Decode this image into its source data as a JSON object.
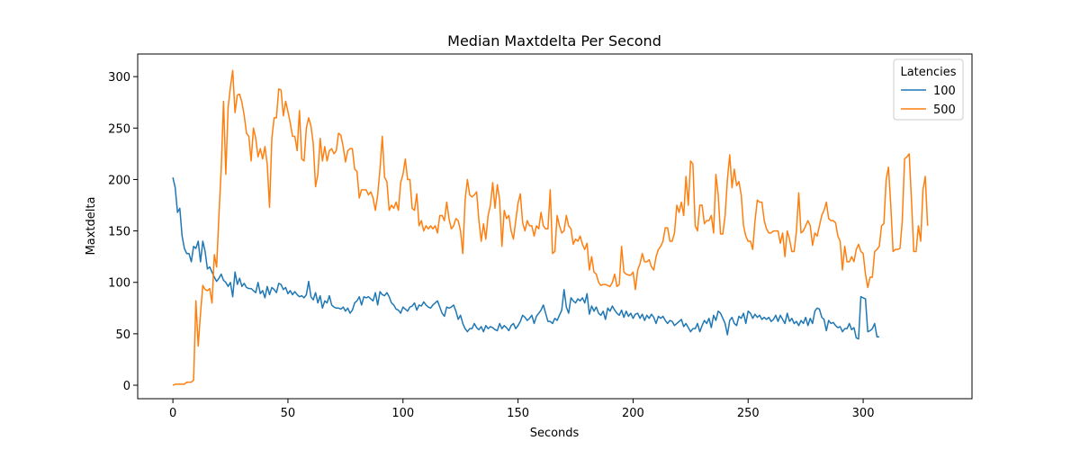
{
  "chart_data": {
    "type": "line",
    "title": "Median Maxtdelta Per Second",
    "x_label": "Seconds",
    "y_label": "Maxtdelta",
    "legend_title": "Latencies",
    "legend_position": "upper right",
    "xlim": [
      -15.3,
      347.3
    ],
    "ylim": [
      -13.1,
      322
    ],
    "xticks": [
      0,
      50,
      100,
      150,
      200,
      250,
      300
    ],
    "yticks": [
      0,
      50,
      100,
      150,
      200,
      250,
      300
    ],
    "x": [
      0,
      1,
      2,
      3,
      4,
      5,
      6,
      7,
      8,
      9,
      10,
      11,
      12,
      13,
      14,
      15,
      16,
      17,
      18,
      19,
      20,
      21,
      22,
      23,
      24,
      25,
      26,
      27,
      28,
      29,
      30,
      31,
      32,
      33,
      34,
      35,
      36,
      37,
      38,
      39,
      40,
      41,
      42,
      43,
      44,
      45,
      46,
      47,
      48,
      49,
      50,
      51,
      52,
      53,
      54,
      55,
      56,
      57,
      58,
      59,
      60,
      61,
      62,
      63,
      64,
      65,
      66,
      67,
      68,
      69,
      70,
      71,
      72,
      73,
      74,
      75,
      76,
      77,
      78,
      79,
      80,
      81,
      82,
      83,
      84,
      85,
      86,
      87,
      88,
      89,
      90,
      91,
      92,
      93,
      94,
      95,
      96,
      97,
      98,
      99,
      100,
      101,
      102,
      103,
      104,
      105,
      106,
      107,
      108,
      109,
      110,
      111,
      112,
      113,
      114,
      115,
      116,
      117,
      118,
      119,
      120,
      121,
      122,
      123,
      124,
      125,
      126,
      127,
      128,
      129,
      130,
      131,
      132,
      133,
      134,
      135,
      136,
      137,
      138,
      139,
      140,
      141,
      142,
      143,
      144,
      145,
      146,
      147,
      148,
      149,
      150,
      151,
      152,
      153,
      154,
      155,
      156,
      157,
      158,
      159,
      160,
      161,
      162,
      163,
      164,
      165,
      166,
      167,
      168,
      169,
      170,
      171,
      172,
      173,
      174,
      175,
      176,
      177,
      178,
      179,
      180,
      181,
      182,
      183,
      184,
      185,
      186,
      187,
      188,
      189,
      190,
      191,
      192,
      193,
      194,
      195,
      196,
      197,
      198,
      199,
      200,
      201,
      202,
      203,
      204,
      205,
      206,
      207,
      208,
      209,
      210,
      211,
      212,
      213,
      214,
      215,
      216,
      217,
      218,
      219,
      220,
      221,
      222,
      223,
      224,
      225,
      226,
      227,
      228,
      229,
      230,
      231,
      232,
      233,
      234,
      235,
      236,
      237,
      238,
      239,
      240,
      241,
      242,
      243,
      244,
      245,
      246,
      247,
      248,
      249,
      250,
      251,
      252,
      253,
      254,
      255,
      256,
      257,
      258,
      259,
      260,
      261,
      262,
      263,
      264,
      265,
      266,
      267,
      268,
      269,
      270,
      271,
      272,
      273,
      274,
      275,
      276,
      277,
      278,
      279,
      280,
      281,
      282,
      283,
      284,
      285,
      286,
      287,
      288,
      289,
      290,
      291,
      292,
      293,
      294,
      295,
      296,
      297,
      298,
      299,
      300,
      301,
      302,
      303,
      304,
      305,
      306,
      307,
      308,
      309,
      310,
      311,
      312,
      313,
      314,
      315,
      316,
      317,
      318,
      319,
      320,
      321,
      322,
      323,
      324,
      325,
      326,
      327,
      328
    ],
    "series": [
      {
        "name": "100",
        "color": "#1f77b4",
        "values": [
          202,
          192,
          168,
          172,
          145,
          133,
          128,
          128,
          120,
          135,
          133,
          140,
          120,
          140,
          130,
          113,
          115,
          110,
          105,
          101,
          104,
          108,
          102,
          100,
          96,
          100,
          86,
          110,
          98,
          104,
          96,
          99,
          95,
          94,
          94,
          92,
          90,
          100,
          89,
          92,
          85,
          96,
          88,
          95,
          93,
          90,
          99,
          98,
          93,
          95,
          89,
          92,
          88,
          91,
          88,
          86,
          87,
          85,
          88,
          101,
          86,
          83,
          90,
          80,
          87,
          75,
          82,
          80,
          87,
          78,
          76,
          75,
          75,
          74,
          76,
          72,
          75,
          70,
          73,
          80,
          82,
          86,
          78,
          86,
          85,
          86,
          84,
          82,
          90,
          78,
          91,
          88,
          87,
          90,
          86,
          80,
          78,
          74,
          73,
          70,
          76,
          74,
          72,
          76,
          77,
          80,
          73,
          78,
          77,
          81,
          78,
          76,
          75,
          78,
          80,
          82,
          76,
          70,
          67,
          76,
          75,
          76,
          78,
          72,
          64,
          68,
          60,
          55,
          52,
          55,
          55,
          60,
          56,
          54,
          57,
          52,
          58,
          55,
          57,
          56,
          54,
          53,
          60,
          55,
          58,
          56,
          53,
          58,
          60,
          55,
          58,
          62,
          68,
          66,
          63,
          65,
          68,
          60,
          67,
          70,
          73,
          78,
          70,
          62,
          62,
          60,
          65,
          63,
          68,
          73,
          93,
          76,
          70,
          85,
          82,
          80,
          84,
          82,
          85,
          80,
          89,
          69,
          77,
          72,
          76,
          70,
          68,
          72,
          64,
          75,
          72,
          77,
          73,
          70,
          68,
          73,
          66,
          72,
          67,
          70,
          65,
          69,
          70,
          65,
          69,
          63,
          68,
          65,
          69,
          66,
          60,
          67,
          65,
          67,
          63,
          60,
          63,
          62,
          58,
          60,
          62,
          64,
          57,
          60,
          56,
          52,
          55,
          55,
          60,
          52,
          58,
          63,
          60,
          65,
          56,
          68,
          63,
          72,
          70,
          65,
          60,
          49,
          63,
          66,
          60,
          58,
          67,
          65,
          70,
          60,
          72,
          70,
          65,
          69,
          66,
          68,
          64,
          66,
          64,
          66,
          62,
          64,
          68,
          62,
          68,
          64,
          60,
          70,
          62,
          65,
          60,
          62,
          58,
          63,
          60,
          66,
          58,
          65,
          60,
          72,
          75,
          74,
          66,
          64,
          53,
          63,
          60,
          61,
          58,
          56,
          57,
          52,
          55,
          55,
          60,
          54,
          56,
          46,
          45,
          86,
          85,
          84,
          52,
          53,
          55,
          60,
          47,
          47,
          null,
          null,
          null,
          null,
          null,
          null,
          null,
          null,
          null,
          null,
          null,
          null,
          null,
          null,
          null,
          null,
          null,
          null,
          null,
          null,
          null
        ]
      },
      {
        "name": "500",
        "color": "#ff7f0e",
        "values": [
          0,
          1,
          1,
          1,
          1,
          1,
          3,
          3,
          3,
          5,
          82,
          38,
          70,
          97,
          93,
          92,
          94,
          80,
          127,
          115,
          165,
          210,
          276,
          205,
          270,
          290,
          306,
          265,
          282,
          283,
          275,
          262,
          245,
          242,
          218,
          250,
          240,
          222,
          230,
          220,
          232,
          215,
          173,
          240,
          260,
          260,
          288,
          287,
          262,
          276,
          266,
          255,
          242,
          242,
          228,
          267,
          220,
          218,
          250,
          260,
          252,
          235,
          193,
          205,
          240,
          218,
          232,
          218,
          228,
          230,
          225,
          228,
          245,
          243,
          232,
          217,
          228,
          230,
          230,
          210,
          208,
          182,
          190,
          190,
          190,
          185,
          188,
          182,
          170,
          185,
          210,
          242,
          202,
          198,
          170,
          175,
          172,
          178,
          170,
          197,
          205,
          220,
          200,
          200,
          172,
          170,
          186,
          155,
          160,
          150,
          155,
          152,
          155,
          152,
          155,
          148,
          165,
          165,
          160,
          178,
          162,
          152,
          155,
          162,
          160,
          150,
          128,
          180,
          200,
          185,
          183,
          185,
          188,
          160,
          140,
          157,
          142,
          165,
          175,
          197,
          172,
          195,
          180,
          135,
          170,
          162,
          165,
          150,
          142,
          160,
          177,
          186,
          158,
          150,
          160,
          155,
          155,
          145,
          155,
          152,
          168,
          155,
          152,
          152,
          190,
          128,
          130,
          165,
          155,
          148,
          150,
          165,
          155,
          152,
          137,
          142,
          140,
          145,
          137,
          132,
          138,
          112,
          125,
          110,
          108,
          100,
          97,
          98,
          98,
          97,
          96,
          100,
          108,
          96,
          98,
          135,
          110,
          108,
          107,
          107,
          110,
          93,
          112,
          118,
          128,
          120,
          120,
          122,
          115,
          112,
          125,
          132,
          135,
          140,
          153,
          153,
          140,
          140,
          148,
          175,
          168,
          178,
          165,
          203,
          175,
          218,
          215,
          155,
          150,
          175,
          175,
          157,
          160,
          160,
          165,
          148,
          205,
          185,
          147,
          147,
          165,
          200,
          224,
          192,
          210,
          194,
          198,
          185,
          155,
          145,
          140,
          140,
          132,
          160,
          180,
          178,
          178,
          160,
          152,
          148,
          148,
          150,
          150,
          150,
          138,
          148,
          125,
          150,
          142,
          130,
          130,
          150,
          187,
          148,
          150,
          155,
          160,
          155,
          136,
          148,
          145,
          155,
          165,
          170,
          178,
          162,
          160,
          160,
          158,
          145,
          140,
          112,
          135,
          120,
          120,
          125,
          120,
          132,
          137,
          130,
          128,
          108,
          95,
          105,
          105,
          130,
          132,
          135,
          155,
          157,
          200,
          212,
          175,
          130,
          132,
          132,
          133,
          160,
          220,
          222,
          225,
          180,
          130,
          130,
          155,
          140,
          190,
          203,
          155
        ]
      }
    ]
  }
}
